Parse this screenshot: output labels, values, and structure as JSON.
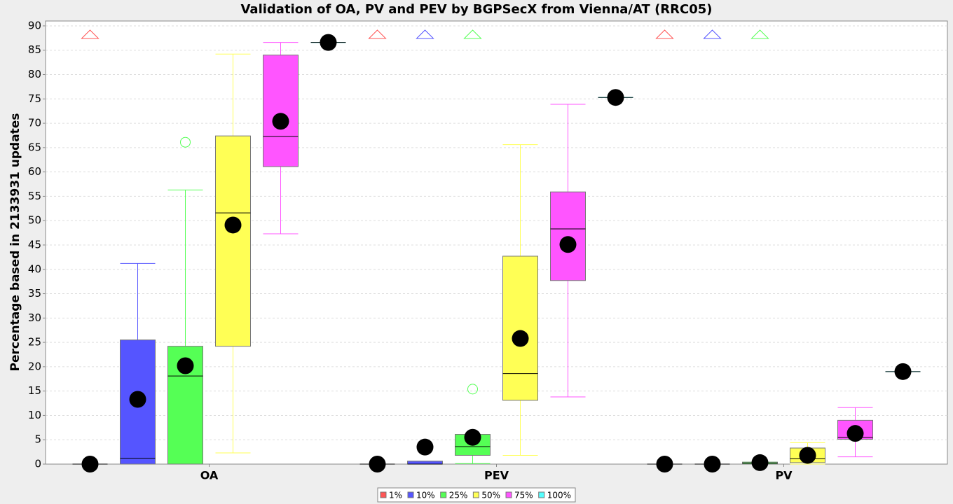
{
  "chart_data": {
    "type": "boxplot",
    "title": "Validation of OA, PV and PEV by BGPSecX from Vienna/AT (RRC05)",
    "y_label": "Percentage based in 2133931 updates",
    "categories": [
      "OA",
      "PEV",
      "PV"
    ],
    "ylim": [
      0,
      91
    ],
    "yticks": [
      0,
      5,
      10,
      15,
      20,
      25,
      30,
      35,
      40,
      45,
      50,
      55,
      60,
      65,
      70,
      75,
      80,
      85,
      90
    ],
    "grid": true,
    "legend": "bottom",
    "mean_color": "#000000",
    "series": [
      {
        "name": "1%",
        "color": "#ff5555",
        "values": [
          {
            "min": 0,
            "q1": 0,
            "median": 0,
            "q3": 0,
            "max": 0,
            "mean": 0,
            "outliers": [],
            "far_out": true
          },
          {
            "min": 0,
            "q1": 0,
            "median": 0,
            "q3": 0,
            "max": 0,
            "mean": 0,
            "outliers": [],
            "far_out": true
          },
          {
            "min": 0,
            "q1": 0,
            "median": 0,
            "q3": 0,
            "max": 0,
            "mean": 0,
            "outliers": [],
            "far_out": true
          }
        ]
      },
      {
        "name": "10%",
        "color": "#5555ff",
        "values": [
          {
            "min": 0,
            "q1": 0,
            "median": 1.2,
            "q3": 25.5,
            "max": 41.2,
            "mean": 13.3,
            "outliers": [],
            "far_out": false
          },
          {
            "min": 0,
            "q1": 0,
            "median": 0,
            "q3": 0.6,
            "max": 0.6,
            "mean": 3.5,
            "outliers": [],
            "far_out": true
          },
          {
            "min": 0,
            "q1": 0,
            "median": 0,
            "q3": 0,
            "max": 0,
            "mean": 0,
            "outliers": [],
            "far_out": true
          }
        ]
      },
      {
        "name": "25%",
        "color": "#55ff55",
        "values": [
          {
            "min": 0,
            "q1": 0,
            "median": 18.1,
            "q3": 24.2,
            "max": 56.3,
            "mean": 20.2,
            "outliers": [
              66.1
            ],
            "far_out": false
          },
          {
            "min": 0.1,
            "q1": 1.8,
            "median": 3.6,
            "q3": 6.1,
            "max": 6.1,
            "mean": 5.5,
            "outliers": [
              15.4
            ],
            "far_out": true
          },
          {
            "min": 0,
            "q1": 0,
            "median": 0.2,
            "q3": 0.4,
            "max": 0.4,
            "mean": 0.3,
            "outliers": [],
            "far_out": true
          }
        ]
      },
      {
        "name": "50%",
        "color": "#ffff55",
        "values": [
          {
            "min": 2.3,
            "q1": 24.2,
            "median": 51.6,
            "q3": 67.4,
            "max": 84.2,
            "mean": 49.1,
            "outliers": [],
            "far_out": false
          },
          {
            "min": 1.8,
            "q1": 13.1,
            "median": 18.6,
            "q3": 42.7,
            "max": 65.6,
            "mean": 25.8,
            "outliers": [],
            "far_out": false
          },
          {
            "min": 0,
            "q1": 0.3,
            "median": 1.1,
            "q3": 3.3,
            "max": 4.4,
            "mean": 1.8,
            "outliers": [],
            "far_out": false
          }
        ]
      },
      {
        "name": "75%",
        "color": "#ff55ff",
        "values": [
          {
            "min": 47.3,
            "q1": 61.1,
            "median": 67.3,
            "q3": 84.0,
            "max": 86.6,
            "mean": 70.4,
            "outliers": [],
            "far_out": false
          },
          {
            "min": 13.8,
            "q1": 37.7,
            "median": 48.3,
            "q3": 55.9,
            "max": 73.9,
            "mean": 45.1,
            "outliers": [],
            "far_out": false
          },
          {
            "min": 1.5,
            "q1": 5.1,
            "median": 5.5,
            "q3": 9.0,
            "max": 11.6,
            "mean": 6.3,
            "outliers": [],
            "far_out": false
          }
        ]
      },
      {
        "name": "100%",
        "color": "#55ffff",
        "values": [
          {
            "min": 86.6,
            "q1": 86.6,
            "median": 86.6,
            "q3": 86.6,
            "max": 86.6,
            "mean": 86.6,
            "outliers": [],
            "far_out": false
          },
          {
            "min": 75.3,
            "q1": 75.3,
            "median": 75.3,
            "q3": 75.3,
            "max": 75.3,
            "mean": 75.3,
            "outliers": [],
            "far_out": false
          },
          {
            "min": 19.0,
            "q1": 19.0,
            "median": 19.0,
            "q3": 19.0,
            "max": 19.0,
            "mean": 19.0,
            "outliers": [],
            "far_out": false
          }
        ]
      }
    ]
  }
}
